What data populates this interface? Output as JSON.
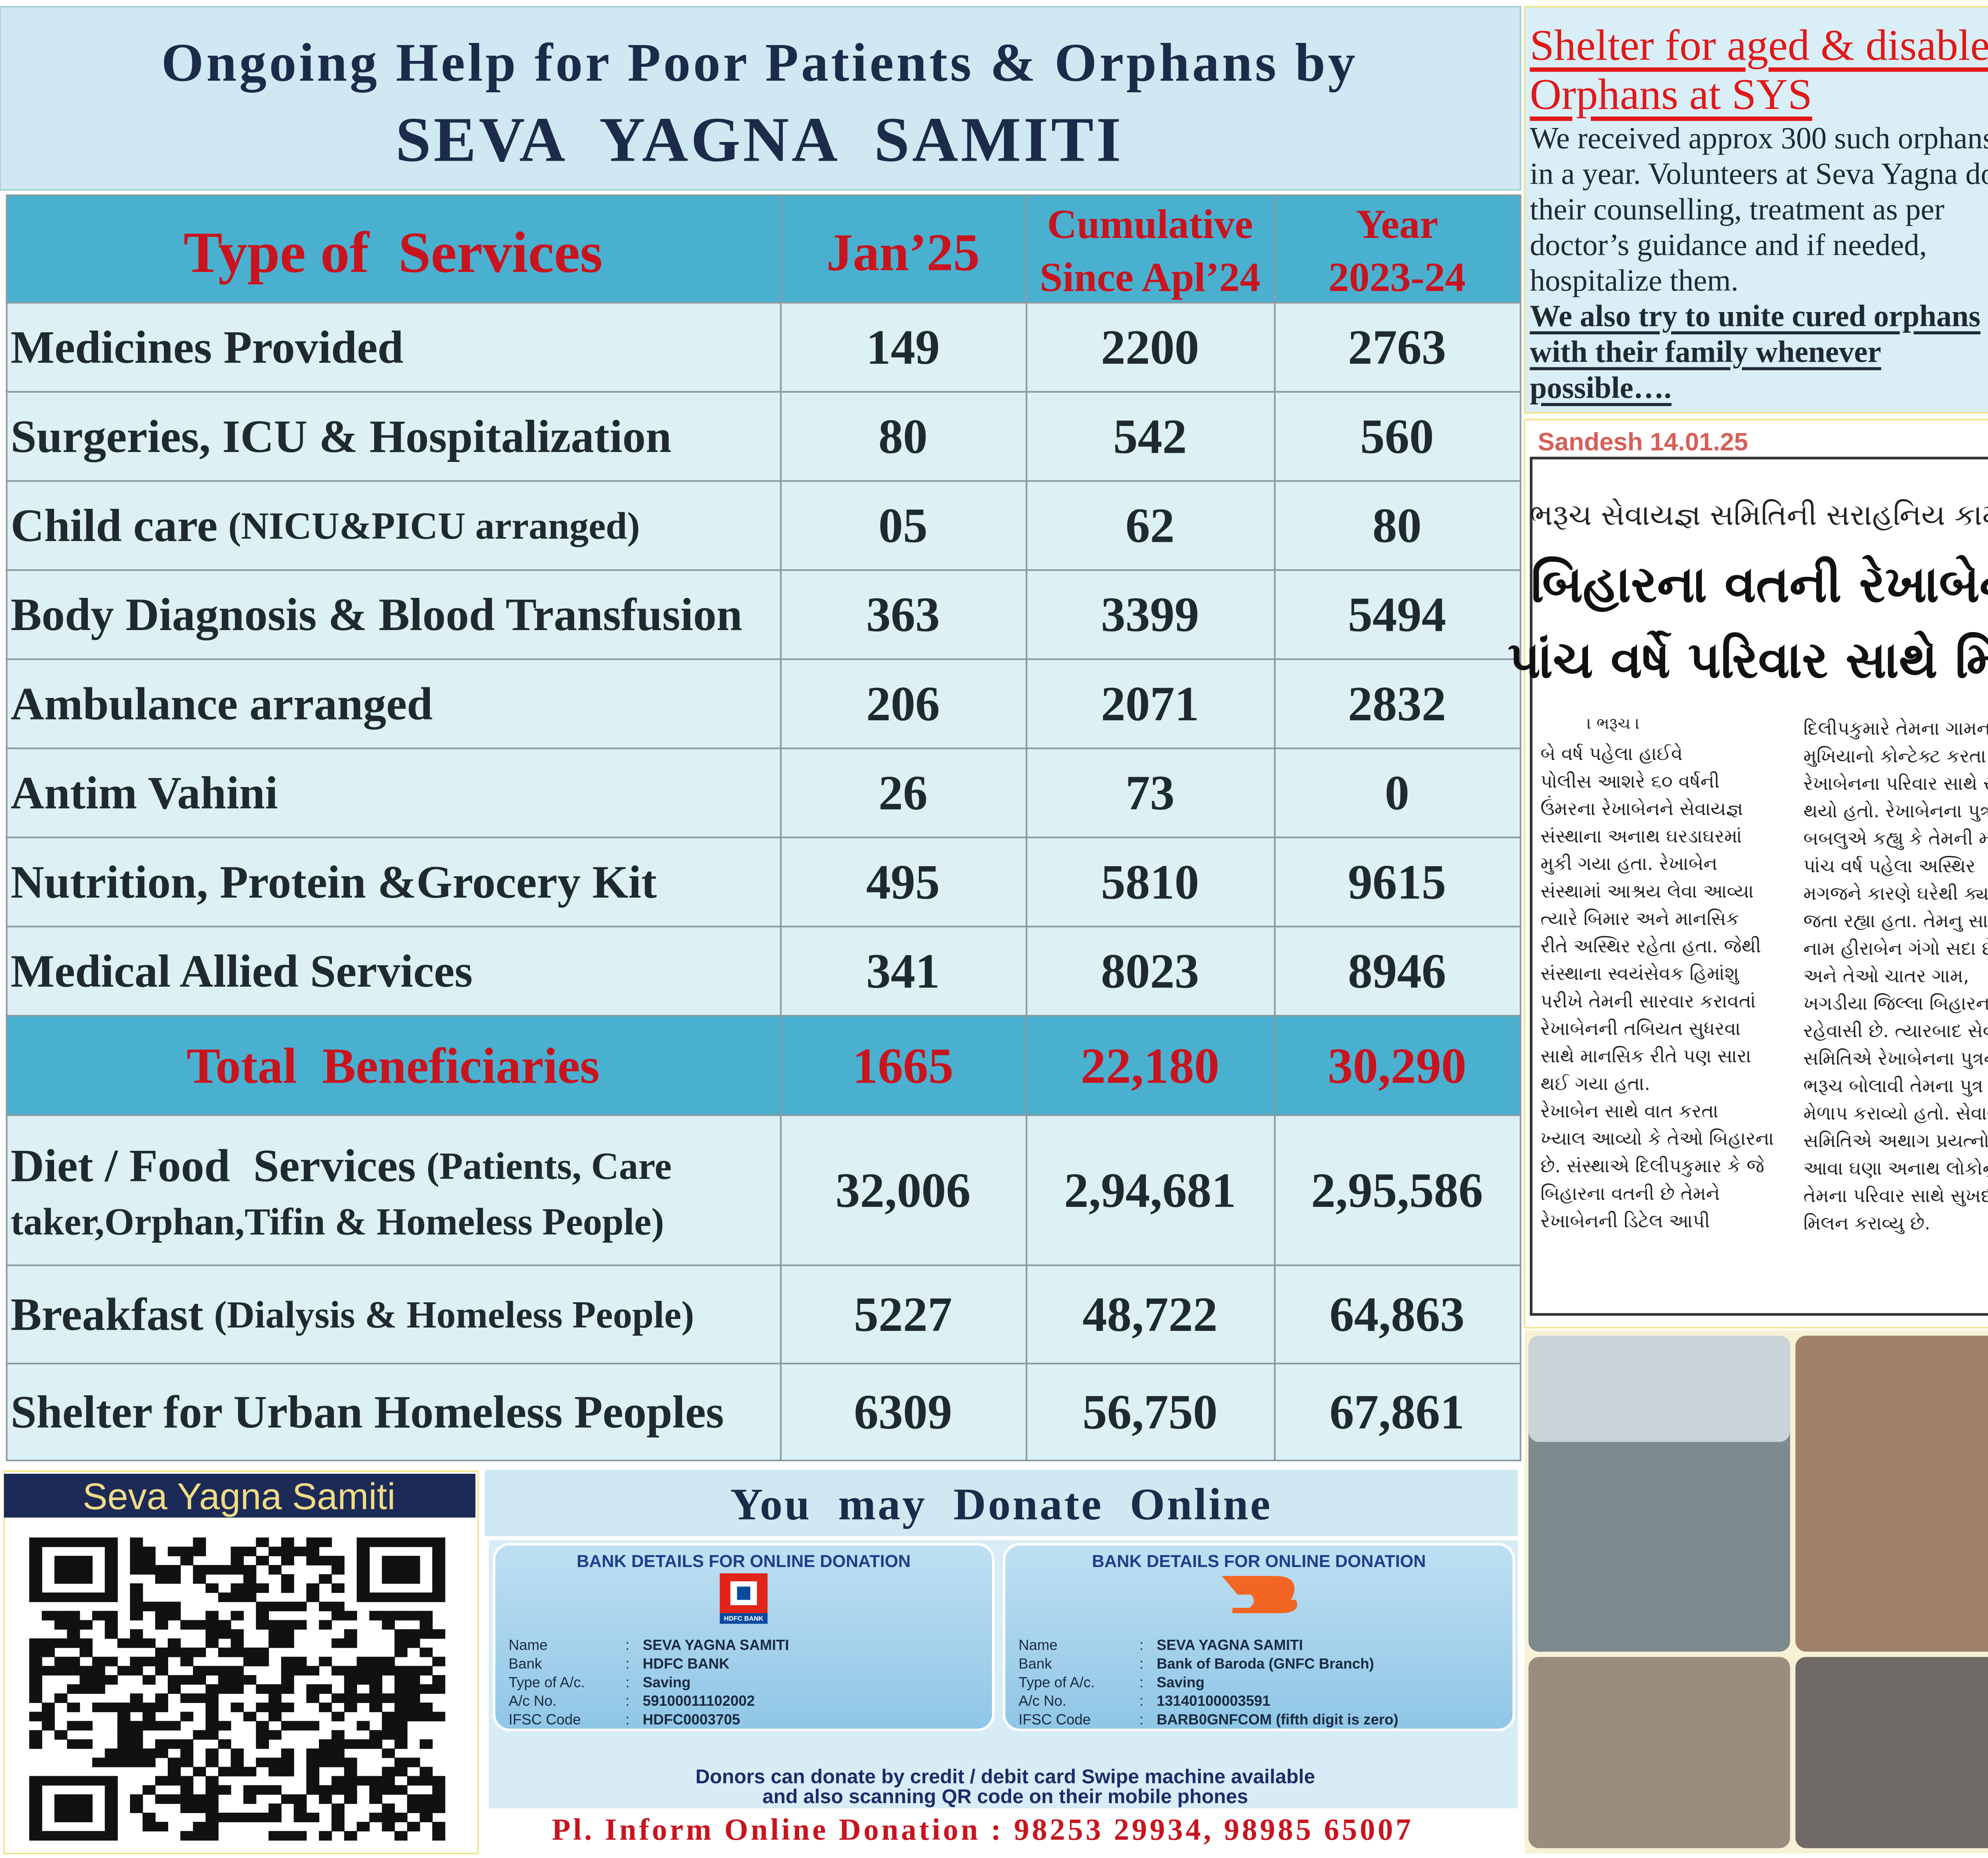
{
  "header": {
    "title_line1": "Ongoing Help for Poor Patients & Orphans by",
    "title_line2": "SEVA  YAGNA  SAMITI"
  },
  "table": {
    "headers": {
      "service": "Type of  Services",
      "jan": "Jan’25",
      "cumulative": [
        "Cumulative",
        "Since Apl’24"
      ],
      "year": [
        "Year",
        "2023-24"
      ]
    },
    "rows": [
      {
        "service": "Medicines Provided",
        "values": [
          "149",
          "2200",
          "2763"
        ]
      },
      {
        "service": "Surgeries, ICU & Hospitalization",
        "values": [
          "80",
          "542",
          "560"
        ]
      },
      {
        "service": "Child care",
        "note": [
          "(NICU&PICU arranged)"
        ],
        "values": [
          "05",
          "62",
          "80"
        ]
      },
      {
        "service": "Body Diagnosis & Blood Transfusion",
        "values": [
          "363",
          "3399",
          "5494"
        ]
      },
      {
        "service": "Ambulance arranged",
        "values": [
          "206",
          "2071",
          "2832"
        ]
      },
      {
        "service": "Antim Vahini",
        "values": [
          "26",
          "73",
          "0"
        ]
      },
      {
        "service": "Nutrition, Protein &Grocery Kit",
        "values": [
          "495",
          "5810",
          "9615"
        ]
      },
      {
        "service": "Medical Allied Services",
        "values": [
          "341",
          "8023",
          "8946"
        ]
      }
    ],
    "total": {
      "label": "Total  Beneficiaries",
      "values": [
        "1665",
        "22,180",
        "30,290"
      ]
    },
    "food_rows": [
      {
        "service": "Diet / Food  Services",
        "note": [
          "(Patients, Care",
          "taker,Orphan,Tifin & Homeless People)"
        ],
        "values": [
          "32,006",
          "2,94,681",
          "2,95,586"
        ]
      },
      {
        "service": "Breakfast",
        "note": [
          "(Dialysis & Homeless People)"
        ],
        "values": [
          "5227",
          "48,722",
          "64,863"
        ]
      },
      {
        "service": "Shelter for Urban Homeless Peoples",
        "values": [
          "6309",
          "56,750",
          "67,861"
        ]
      }
    ]
  },
  "sidebar": {
    "title": [
      "Shelter for aged & disabled",
      "Orphans at SYS"
    ],
    "body": [
      "We received approx 300 such orphans",
      "in a year. Volunteers at Seva Yagna do",
      "their counselling, treatment as per",
      "doctor’s guidance and if needed,",
      "hospitalize them."
    ],
    "highlight": [
      "We also try to unite cured orphans",
      "with their family whenever",
      "possible…."
    ]
  },
  "newspaper": {
    "source": "Sandesh 14.01.25",
    "kicker": "ભરૂચ સેવાયજ્ઞ સમિતિની સરાહનિય કામગીરી",
    "headline": [
      "બિહારના વતની રેખાબેનનું",
      "પાંચ વર્ષે પરિવાર સાથે મિલન"
    ],
    "dateline": "। ભરૂચ ।",
    "columns": [
      [
        "બે વર્ષ પહેલા હાઈવે",
        "પોલીસ આશરે ૬૦ વર્ષની",
        "ઉંમરના રેખાબેનને સેવાયજ્ઞ",
        "સંસ્થાના અનાથ ઘરડાઘરમાં",
        "મુકી ગયા હતા. રેખાબેન",
        "સંસ્થામાં આશ્રય લેવા આવ્યા",
        "ત્યારે બિમાર અને માનસિક",
        "રીતે અસ્થિર રહેતા હતા. જેથી",
        "સંસ્થાના સ્વયંસેવક હિમાંશુ",
        "પરીખે તેમની સારવાર કરાવતાં",
        "રેખાબેનની તબિયત સુધરવા",
        "સાથે માનસિક રીતે પણ સારા",
        "થઈ ગયા હતા.",
        "રેખાબેન સાથે વાત કરતા",
        "ખ્યાલ આવ્યો કે તેઓ બિહારના",
        "છે. સંસ્થાએ દિલીપકુમાર કે જે",
        "બિહારના વતની છે તેમને",
        "રેખાબેનની ડિટેલ આપી"
      ],
      [
        "દિલીપકુમારે તેમના ગામના",
        "મુખિયાનો કોન્ટેક્ટ કરતા",
        "રેખાબેનના પરિવાર સાથે સંપર્ક",
        "થયો હતો. રેખાબેનના પુત્ર",
        "બબલુએ કહ્યુ કે તેમની માતા",
        "પાંચ વર્ષ પહેલા અસ્થિર",
        "મગજને કારણે ઘરેથી ક્યાંય",
        "જતા રહ્યા હતા. તેમનુ સાચુ",
        "નામ હીરાબેન ગંગો સદા છે.",
        "અને તેઓ ચાતર ગામ,",
        "ખગડીયા જિલ્લા બિહારના",
        "રહેવાસી છે. ત્યારબાદ સેવાયજ્ઞ",
        "સમિતિએ રેખાબેનના પુત્રને",
        "ભરૂચ બોલાવી તેમના પુત્ર સાથે",
        "મેળાપ કરાવ્યો હતો. સેવાયજ્ઞ",
        "સમિતિએ અથાગ પ્રયત્નો કરી",
        "આવા ઘણા અનાથ લોકોનું",
        "તેમના પરિવાર સાથે સુખદ",
        "મિલન કરાવ્યુ છે."
      ]
    ]
  },
  "qr": {
    "label": "Seva Yagna Samiti"
  },
  "donate": {
    "title": "You  may  Donate  Online",
    "cards": [
      {
        "title": "BANK DETAILS FOR ONLINE DONATION",
        "logo": "HDFC BANK",
        "separator": ":",
        "fields": [
          [
            "Name",
            "SEVA YAGNA SAMITI"
          ],
          [
            "Bank",
            "HDFC BANK"
          ],
          [
            "Type of A/c.",
            "Saving"
          ],
          [
            "A/c No.",
            "59100011102002"
          ],
          [
            "IFSC Code",
            "HDFC0003705"
          ]
        ]
      },
      {
        "title": "BANK DETAILS FOR ONLINE DONATION",
        "separator": ":",
        "fields": [
          [
            "Name",
            "SEVA YAGNA SAMITI"
          ],
          [
            "Bank",
            "Bank of Baroda (GNFC Branch)"
          ],
          [
            "Type of A/c.",
            "Saving"
          ],
          [
            "A/c No.",
            "13140100003591"
          ],
          [
            "IFSC Code",
            "BARB0GNFCOM (fifth digit is zero)"
          ]
        ]
      }
    ],
    "note": [
      "Donors can donate by credit / debit card Swipe machine available",
      "and also scanning QR code on their mobile phones"
    ],
    "contact": "Pl. Inform Online Donation : 98253 29934, 98985 65007"
  }
}
